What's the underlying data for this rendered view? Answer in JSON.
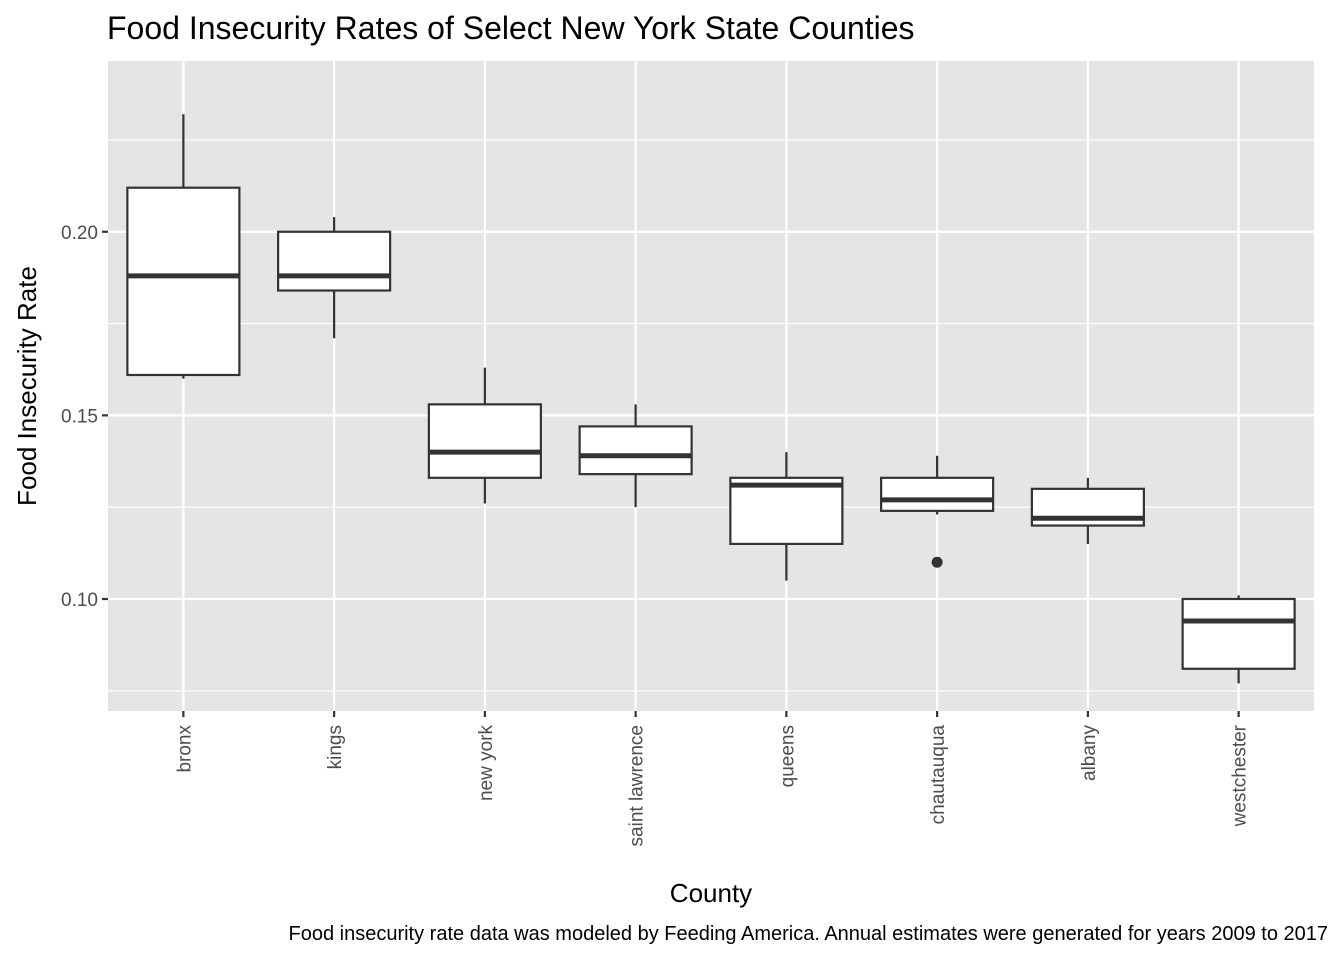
{
  "chart_data": {
    "type": "boxplot",
    "title": "Food Insecurity Rates of Select New York State Counties",
    "caption": "Food insecurity rate data was modeled by Feeding America. Annual estimates were generated for years 2009 to 2017",
    "xlabel": "County",
    "ylabel": "Food Insecurity Rate",
    "ylim": [
      0.0695,
      0.2465
    ],
    "yticks": [
      0.1,
      0.15,
      0.2
    ],
    "ytick_labels": [
      "0.10",
      "0.15",
      "0.20"
    ],
    "yminor": [
      0.075,
      0.125,
      0.175,
      0.225
    ],
    "categories": [
      "bronx",
      "kings",
      "new york",
      "saint lawrence",
      "queens",
      "chautauqua",
      "albany",
      "westchester"
    ],
    "boxes": [
      {
        "category": "bronx",
        "min": 0.16,
        "q1": 0.161,
        "median": 0.188,
        "q3": 0.212,
        "max": 0.232,
        "outliers": []
      },
      {
        "category": "kings",
        "min": 0.171,
        "q1": 0.184,
        "median": 0.188,
        "q3": 0.2,
        "max": 0.204,
        "outliers": []
      },
      {
        "category": "new york",
        "min": 0.126,
        "q1": 0.133,
        "median": 0.14,
        "q3": 0.153,
        "max": 0.163,
        "outliers": []
      },
      {
        "category": "saint lawrence",
        "min": 0.125,
        "q1": 0.134,
        "median": 0.139,
        "q3": 0.147,
        "max": 0.153,
        "outliers": []
      },
      {
        "category": "queens",
        "min": 0.105,
        "q1": 0.115,
        "median": 0.131,
        "q3": 0.133,
        "max": 0.14,
        "outliers": []
      },
      {
        "category": "chautauqua",
        "min": 0.123,
        "q1": 0.124,
        "median": 0.127,
        "q3": 0.133,
        "max": 0.139,
        "outliers": [
          0.11
        ]
      },
      {
        "category": "albany",
        "min": 0.115,
        "q1": 0.12,
        "median": 0.122,
        "q3": 0.13,
        "max": 0.133,
        "outliers": []
      },
      {
        "category": "westchester",
        "min": 0.077,
        "q1": 0.081,
        "median": 0.094,
        "q3": 0.1,
        "max": 0.101,
        "outliers": []
      }
    ],
    "grid": true,
    "legend": "none",
    "colors": {
      "panel_background": "#e5e5e5",
      "grid_line": "#ffffff",
      "box_fill": "#ffffff",
      "box_stroke": "#333333",
      "outlier_fill": "#333333",
      "tick_label": "#4d4d4d",
      "tick_mark": "#333333"
    }
  }
}
